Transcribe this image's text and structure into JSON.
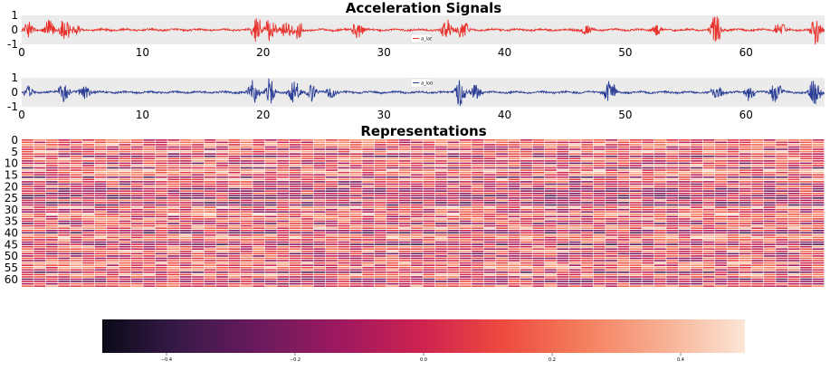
{
  "chart_data": [
    {
      "type": "line",
      "title": "Acceleration Signals",
      "series": [
        {
          "name": "a_lat",
          "legend_label": "a_lat",
          "color": "#e8322b"
        }
      ],
      "xlim": [
        0,
        66.5
      ],
      "ylim": [
        -1,
        1
      ],
      "xticks": [
        0,
        10,
        20,
        30,
        40,
        50,
        60
      ],
      "yticks": [
        -1,
        0,
        1
      ],
      "background": "#ebebeb",
      "bursts": [
        {
          "x": 0.6,
          "amp": 0.5
        },
        {
          "x": 2.3,
          "amp": 0.6
        },
        {
          "x": 3.6,
          "amp": 0.9
        },
        {
          "x": 4.5,
          "amp": 0.35
        },
        {
          "x": 19.5,
          "amp": 1.0
        },
        {
          "x": 20.6,
          "amp": 0.8
        },
        {
          "x": 21.9,
          "amp": 0.6
        },
        {
          "x": 22.9,
          "amp": 0.7
        },
        {
          "x": 27.8,
          "amp": 0.6
        },
        {
          "x": 35.2,
          "amp": 0.8
        },
        {
          "x": 36.5,
          "amp": 0.75
        },
        {
          "x": 46.8,
          "amp": 0.4
        },
        {
          "x": 52.6,
          "amp": 0.4
        },
        {
          "x": 57.5,
          "amp": 1.0
        },
        {
          "x": 62.8,
          "amp": 0.6
        },
        {
          "x": 65.8,
          "amp": 0.95
        }
      ]
    },
    {
      "type": "line",
      "title": "",
      "series": [
        {
          "name": "a_lon",
          "legend_label": "a_lon",
          "color": "#2b3e96"
        }
      ],
      "xlim": [
        0,
        66.5
      ],
      "ylim": [
        -1,
        1
      ],
      "xticks": [
        0,
        10,
        20,
        30,
        40,
        50,
        60
      ],
      "yticks": [
        -1,
        0,
        1
      ],
      "background": "#ebebeb",
      "bursts": [
        {
          "x": 0.5,
          "amp": 0.4
        },
        {
          "x": 3.5,
          "amp": 0.85
        },
        {
          "x": 5.2,
          "amp": 0.5
        },
        {
          "x": 19.2,
          "amp": 0.8
        },
        {
          "x": 20.5,
          "amp": 0.9
        },
        {
          "x": 22.6,
          "amp": 0.85
        },
        {
          "x": 24.0,
          "amp": 0.6
        },
        {
          "x": 25.6,
          "amp": 0.4
        },
        {
          "x": 36.3,
          "amp": 0.9
        },
        {
          "x": 37.6,
          "amp": 0.5
        },
        {
          "x": 48.7,
          "amp": 0.9
        },
        {
          "x": 57.6,
          "amp": 0.45
        },
        {
          "x": 60.3,
          "amp": 0.5
        },
        {
          "x": 62.5,
          "amp": 0.8
        },
        {
          "x": 65.7,
          "amp": 1.0
        }
      ]
    },
    {
      "type": "heatmap",
      "title": "Representations",
      "rows": 64,
      "cols": 66,
      "yticks": [
        0,
        5,
        10,
        15,
        20,
        25,
        30,
        35,
        40,
        45,
        50,
        55,
        60
      ],
      "value_range": [
        -0.5,
        0.5
      ]
    },
    {
      "type": "colorbar",
      "colormap": [
        "#0b0b18",
        "#3a1a4b",
        "#6e1a5e",
        "#a0195f",
        "#cf234f",
        "#ee4b3f",
        "#f47f5f",
        "#f7b093",
        "#fbe6d6"
      ],
      "range": [
        -0.5,
        0.5
      ],
      "ticks": [
        -0.4,
        -0.2,
        0.0,
        0.2,
        0.4
      ],
      "tick_labels": [
        "−0.4",
        "−0.2",
        "0.0",
        "0.2",
        "0.4"
      ]
    }
  ]
}
